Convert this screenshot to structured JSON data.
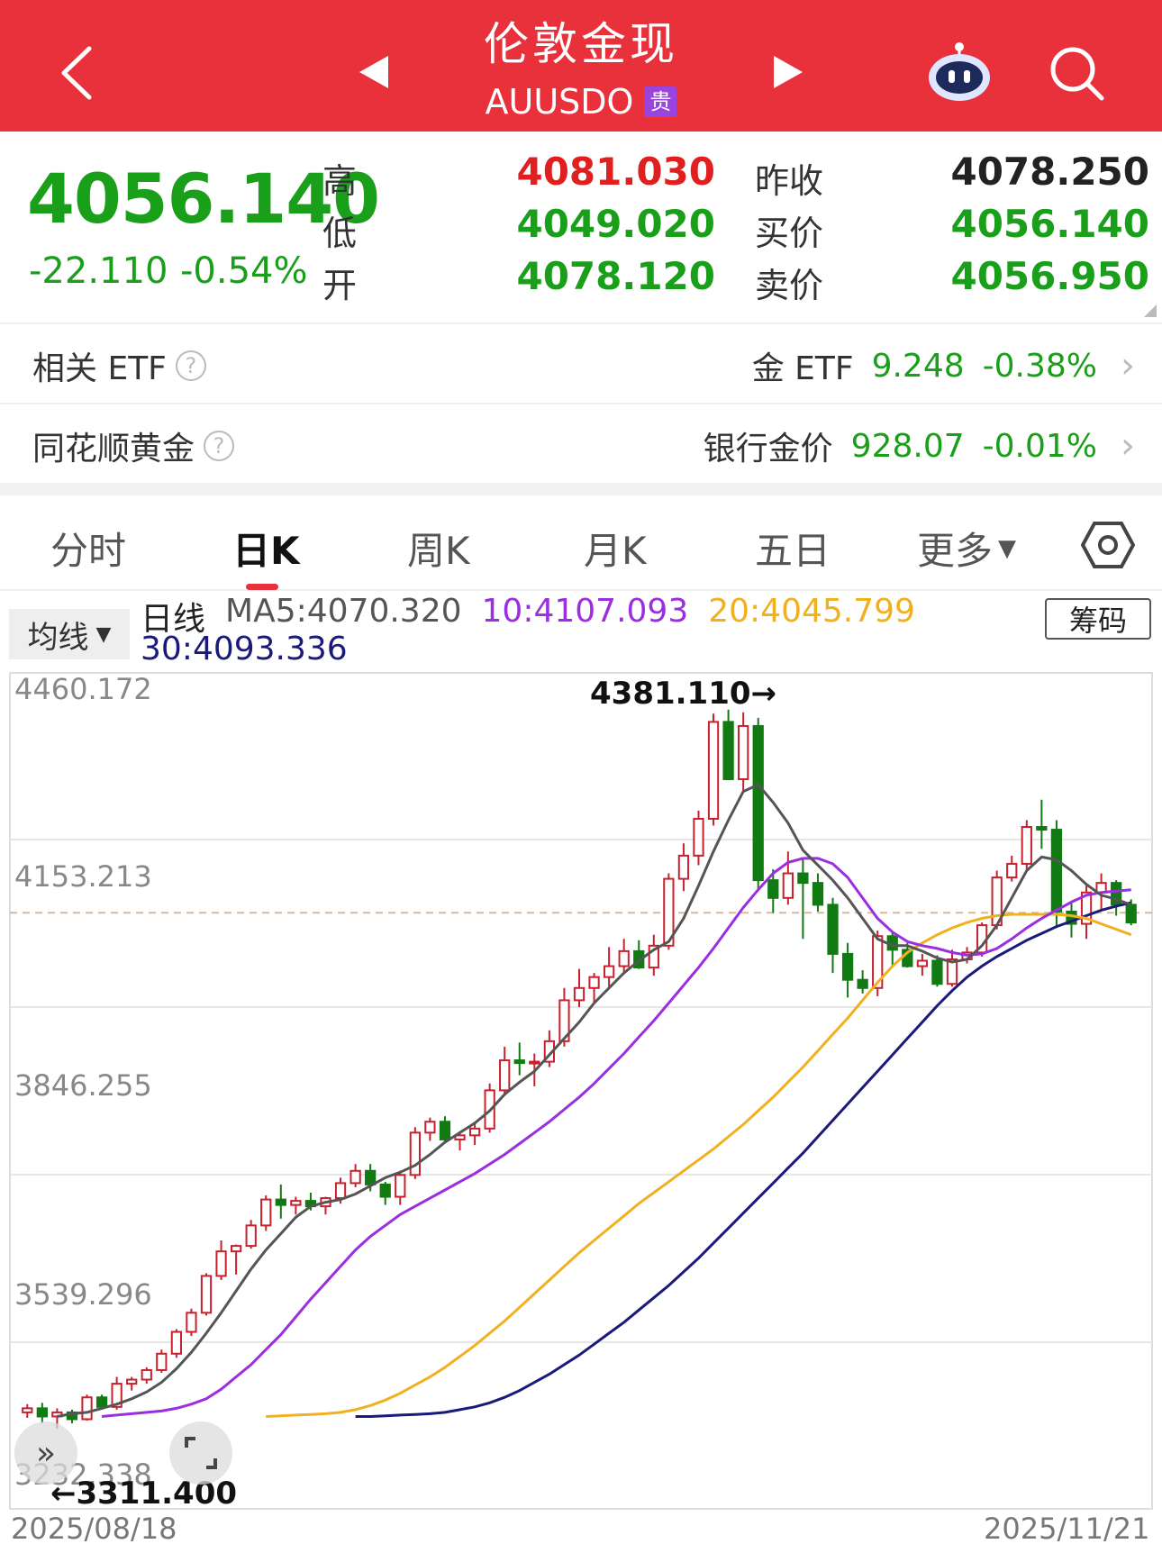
{
  "header": {
    "title": "伦敦金现",
    "code": "AUUSDO",
    "badge": "贵"
  },
  "quote": {
    "price": "4056.140",
    "change": "-22.110",
    "change_pct": "-0.54%",
    "labels": {
      "high": "高",
      "low": "低",
      "open": "开",
      "prev_close": "昨收",
      "bid": "买价",
      "ask": "卖价"
    },
    "high": "4081.030",
    "low": "4049.020",
    "open": "4078.120",
    "prev_close": "4078.250",
    "bid": "4056.140",
    "ask": "4056.950"
  },
  "related": {
    "etf_label": "相关 ETF",
    "etf_name": "金 ETF",
    "etf_price": "9.248",
    "etf_pct": "-0.38%",
    "ths_label": "同花顺黄金",
    "bank_name": "银行金价",
    "bank_price": "928.07",
    "bank_pct": "-0.01%"
  },
  "tabs": [
    "分时",
    "日K",
    "周K",
    "月K",
    "五日",
    "更多"
  ],
  "ma": {
    "select_label": "均线",
    "line_label": "日线",
    "ma5": "MA5:4070.320",
    "ma10": "10:4107.093",
    "ma20": "20:4045.799",
    "ma30": "30:4093.336",
    "chip_button": "筹码",
    "colors": {
      "ma5": "#555555",
      "ma10": "#9a2ee0",
      "ma20": "#f0b020",
      "ma30": "#1a1a7a"
    }
  },
  "chart_data": {
    "type": "candlestick",
    "y_ticks": [
      "4460.172",
      "4153.213",
      "3846.255",
      "3539.296",
      "3232.338"
    ],
    "ylim": [
      3232.338,
      4460.172
    ],
    "max_label": "4381.110→",
    "min_label": "←3311.400",
    "x_start": "2025/08/18",
    "x_end": "2025/11/21",
    "ref_line": 4078.25,
    "candles": [
      [
        3346,
        3358,
        3338,
        3352
      ],
      [
        3352,
        3360,
        3330,
        3340
      ],
      [
        3340,
        3352,
        3322,
        3346
      ],
      [
        3346,
        3350,
        3330,
        3336
      ],
      [
        3336,
        3372,
        3334,
        3368
      ],
      [
        3368,
        3372,
        3350,
        3354
      ],
      [
        3354,
        3398,
        3350,
        3388
      ],
      [
        3388,
        3398,
        3378,
        3394
      ],
      [
        3394,
        3412,
        3388,
        3408
      ],
      [
        3408,
        3438,
        3404,
        3432
      ],
      [
        3432,
        3468,
        3426,
        3464
      ],
      [
        3464,
        3498,
        3458,
        3492
      ],
      [
        3492,
        3550,
        3488,
        3546
      ],
      [
        3546,
        3598,
        3540,
        3582
      ],
      [
        3582,
        3592,
        3548,
        3590
      ],
      [
        3590,
        3628,
        3586,
        3620
      ],
      [
        3620,
        3664,
        3612,
        3658
      ],
      [
        3658,
        3680,
        3630,
        3650
      ],
      [
        3650,
        3662,
        3636,
        3656
      ],
      [
        3656,
        3668,
        3642,
        3648
      ],
      [
        3648,
        3662,
        3636,
        3660
      ],
      [
        3660,
        3690,
        3652,
        3682
      ],
      [
        3682,
        3710,
        3676,
        3700
      ],
      [
        3700,
        3710,
        3670,
        3680
      ],
      [
        3680,
        3684,
        3650,
        3662
      ],
      [
        3662,
        3700,
        3650,
        3694
      ],
      [
        3694,
        3764,
        3688,
        3756
      ],
      [
        3756,
        3778,
        3744,
        3772
      ],
      [
        3772,
        3780,
        3740,
        3746
      ],
      [
        3746,
        3758,
        3730,
        3752
      ],
      [
        3752,
        3770,
        3738,
        3762
      ],
      [
        3762,
        3828,
        3756,
        3818
      ],
      [
        3818,
        3882,
        3812,
        3862
      ],
      [
        3862,
        3888,
        3840,
        3858
      ],
      [
        3858,
        3872,
        3824,
        3860
      ],
      [
        3860,
        3906,
        3852,
        3890
      ],
      [
        3890,
        3968,
        3882,
        3950
      ],
      [
        3950,
        3996,
        3940,
        3968
      ],
      [
        3968,
        3990,
        3946,
        3984
      ],
      [
        3984,
        4028,
        3970,
        4000
      ],
      [
        4000,
        4040,
        3988,
        4022
      ],
      [
        4022,
        4038,
        3996,
        3998
      ],
      [
        3998,
        4046,
        3986,
        4030
      ],
      [
        4030,
        4136,
        4024,
        4128
      ],
      [
        4128,
        4180,
        4110,
        4162
      ],
      [
        4162,
        4228,
        4148,
        4216
      ],
      [
        4216,
        4370,
        4206,
        4358
      ],
      [
        4358,
        4376,
        4280,
        4274
      ],
      [
        4274,
        4372,
        4256,
        4352
      ],
      [
        4352,
        4364,
        4110,
        4126
      ],
      [
        4126,
        4142,
        4078,
        4100
      ],
      [
        4100,
        4168,
        4090,
        4136
      ],
      [
        4136,
        4156,
        4040,
        4122
      ],
      [
        4122,
        4136,
        4080,
        4090
      ],
      [
        4090,
        4100,
        3990,
        4018
      ],
      [
        4018,
        4034,
        3954,
        3980
      ],
      [
        3980,
        3994,
        3960,
        3968
      ],
      [
        3968,
        4052,
        3956,
        4044
      ],
      [
        4044,
        4050,
        4000,
        4024
      ],
      [
        4024,
        4034,
        3998,
        4000
      ],
      [
        4000,
        4018,
        3986,
        4008
      ],
      [
        4008,
        4016,
        3970,
        3974
      ],
      [
        3974,
        4024,
        3970,
        4010
      ],
      [
        4010,
        4028,
        4004,
        4020
      ],
      [
        4020,
        4064,
        4014,
        4060
      ],
      [
        4060,
        4140,
        4054,
        4130
      ],
      [
        4130,
        4162,
        4124,
        4150
      ],
      [
        4150,
        4214,
        4142,
        4204
      ],
      [
        4204,
        4244,
        4172,
        4200
      ],
      [
        4200,
        4214,
        4056,
        4080
      ],
      [
        4080,
        4096,
        4042,
        4062
      ],
      [
        4062,
        4118,
        4040,
        4108
      ],
      [
        4108,
        4136,
        4084,
        4122
      ],
      [
        4122,
        4126,
        4074,
        4090
      ],
      [
        4090,
        4098,
        4060,
        4064
      ]
    ],
    "ma5": [
      3340,
      3344,
      3346,
      3352,
      3358,
      3366,
      3376,
      3390,
      3410,
      3434,
      3462,
      3492,
      3524,
      3556,
      3584,
      3608,
      3632,
      3648,
      3654,
      3658,
      3666,
      3678,
      3690,
      3698,
      3708,
      3724,
      3742,
      3756,
      3770,
      3788,
      3812,
      3830,
      3846,
      3870,
      3894,
      3918,
      3946,
      3968,
      3990,
      4008,
      4024,
      4036,
      4070,
      4118,
      4168,
      4214,
      4256,
      4266,
      4240,
      4210,
      4170,
      4148,
      4126,
      4100,
      4070,
      4040,
      4030,
      4030,
      4022,
      4012,
      4006,
      4010,
      4030,
      4060,
      4100,
      4140,
      4160,
      4156,
      4140,
      4120,
      4104,
      4098,
      4090
    ],
    "ma10": [
      3340,
      3342,
      3344,
      3346,
      3348,
      3352,
      3358,
      3366,
      3380,
      3398,
      3416,
      3438,
      3460,
      3486,
      3512,
      3536,
      3560,
      3584,
      3604,
      3620,
      3636,
      3648,
      3660,
      3672,
      3684,
      3696,
      3710,
      3724,
      3740,
      3756,
      3772,
      3790,
      3808,
      3828,
      3850,
      3872,
      3896,
      3920,
      3946,
      3972,
      3998,
      4026,
      4056,
      4086,
      4112,
      4136,
      4152,
      4158,
      4158,
      4150,
      4130,
      4100,
      4070,
      4050,
      4036,
      4030,
      4026,
      4020,
      4016,
      4018,
      4026,
      4040,
      4056,
      4070,
      4082,
      4094,
      4104,
      4108,
      4110,
      4112
    ],
    "ma20": [
      3340,
      3341,
      3342,
      3343,
      3344,
      3346,
      3350,
      3356,
      3364,
      3374,
      3386,
      3398,
      3412,
      3428,
      3444,
      3462,
      3480,
      3500,
      3520,
      3540,
      3560,
      3580,
      3598,
      3616,
      3634,
      3652,
      3668,
      3684,
      3700,
      3716,
      3732,
      3750,
      3768,
      3788,
      3808,
      3830,
      3852,
      3876,
      3900,
      3924,
      3950,
      3976,
      4000,
      4020,
      4034,
      4046,
      4056,
      4064,
      4070,
      4074,
      4076,
      4076,
      4076,
      4076,
      4074,
      4070,
      4062,
      4054,
      4046
    ],
    "ma30": [
      3340,
      3340,
      3341,
      3342,
      3343,
      3344,
      3346,
      3350,
      3354,
      3360,
      3368,
      3378,
      3390,
      3402,
      3416,
      3430,
      3446,
      3462,
      3478,
      3496,
      3514,
      3532,
      3552,
      3572,
      3594,
      3616,
      3638,
      3660,
      3682,
      3704,
      3726,
      3750,
      3774,
      3798,
      3822,
      3846,
      3870,
      3894,
      3918,
      3942,
      3964,
      3984,
      4000,
      4014,
      4026,
      4038,
      4048,
      4058,
      4066,
      4074,
      4082,
      4088,
      4093
    ]
  }
}
